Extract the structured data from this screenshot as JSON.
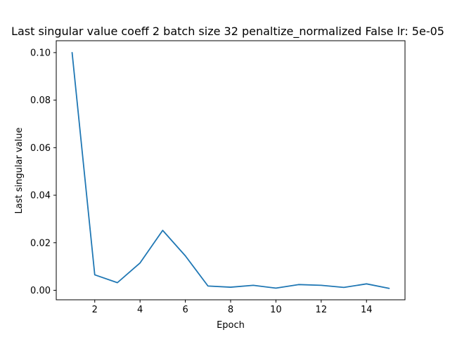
{
  "chart_data": {
    "type": "line",
    "title": "Last singular value coeff 2 batch size 32 penaltize_normalized False lr: 5e-05",
    "xlabel": "Epoch",
    "ylabel": "Last singular value",
    "xlim": [
      0.3,
      15.7
    ],
    "ylim": [
      -0.004,
      0.105
    ],
    "xticks": [
      2,
      4,
      6,
      8,
      10,
      12,
      14
    ],
    "yticks": [
      0.0,
      0.02,
      0.04,
      0.06,
      0.08,
      0.1
    ],
    "xtick_labels": [
      "2",
      "4",
      "6",
      "8",
      "10",
      "12",
      "14"
    ],
    "ytick_labels": [
      "0.00",
      "0.02",
      "0.04",
      "0.06",
      "0.08",
      "0.10"
    ],
    "grid": false,
    "series": [
      {
        "color": "#1f77b4",
        "x": [
          1,
          2,
          3,
          4,
          5,
          6,
          7,
          8,
          9,
          10,
          11,
          12,
          13,
          14,
          15
        ],
        "y": [
          0.1,
          0.0065,
          0.0032,
          0.0115,
          0.0252,
          0.0145,
          0.0018,
          0.0013,
          0.0021,
          0.0009,
          0.0024,
          0.0021,
          0.0012,
          0.0027,
          0.0008
        ]
      }
    ]
  }
}
